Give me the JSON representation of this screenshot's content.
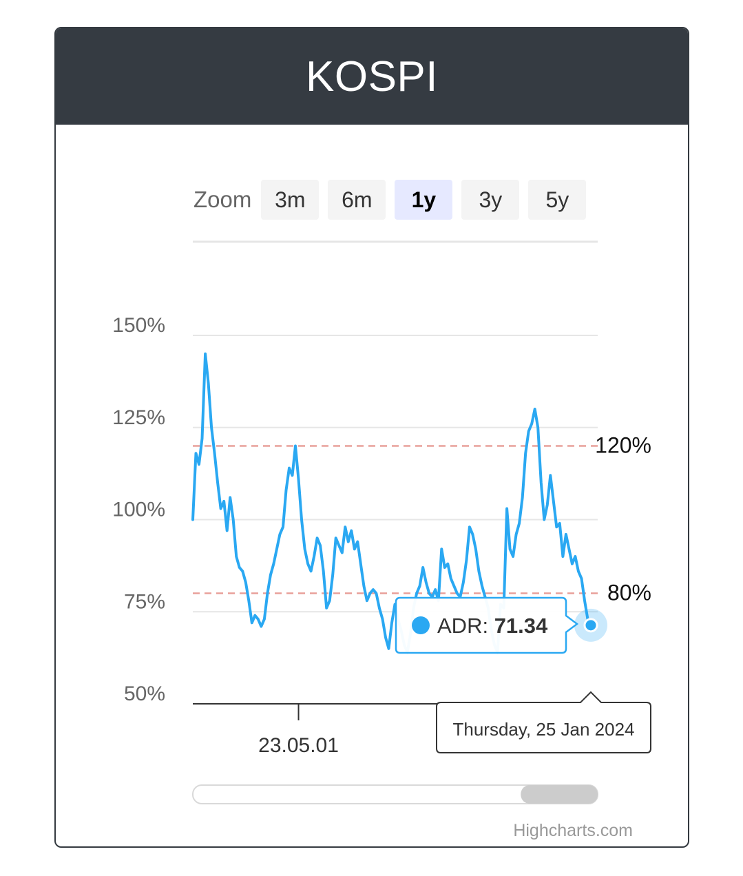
{
  "header": {
    "title": "KOSPI"
  },
  "zoom": {
    "label": "Zoom",
    "buttons": [
      "3m",
      "6m",
      "1y",
      "3y",
      "5y"
    ],
    "active": "1y"
  },
  "colors": {
    "line": "#2aa8f2",
    "threshold": "#e8a09a",
    "header_bg": "#353b42",
    "grid": "#e6e6e6",
    "navigator_handle": "#cccccc"
  },
  "chart_data": {
    "type": "line",
    "title": "",
    "xlabel": "",
    "ylabel": "",
    "ylim": [
      50,
      150
    ],
    "y_ticks": [
      "150%",
      "125%",
      "100%",
      "75%",
      "50%"
    ],
    "x_ticks": [
      {
        "label": "23.05.01",
        "index": 34
      }
    ],
    "grid": true,
    "plot_lines": [
      {
        "value": 120,
        "label": "120%"
      },
      {
        "value": 80,
        "label": "80%"
      }
    ],
    "series": [
      {
        "name": "ADR",
        "values": [
          100,
          118,
          115,
          122,
          145,
          137,
          125,
          118,
          110,
          103,
          105,
          97,
          106,
          100,
          90,
          87,
          86,
          83,
          78,
          72,
          74,
          73,
          71,
          73,
          80,
          85,
          88,
          92,
          96,
          98,
          108,
          114,
          112,
          120,
          111,
          100,
          92,
          88,
          86,
          90,
          95,
          93,
          86,
          76,
          78,
          85,
          95,
          93,
          91,
          98,
          94,
          97,
          92,
          94,
          88,
          82,
          78,
          80,
          81,
          80,
          76,
          73,
          68,
          65,
          72,
          77,
          73,
          70,
          66,
          64,
          69,
          76,
          80,
          82,
          87,
          83,
          80,
          79,
          81,
          78,
          92,
          87,
          88,
          84,
          82,
          80,
          79,
          83,
          89,
          98,
          96,
          92,
          86,
          82,
          79,
          76,
          70,
          66,
          64,
          77,
          76,
          103,
          92,
          90,
          96,
          99,
          106,
          118,
          124,
          126,
          130,
          125,
          110,
          100,
          104,
          112,
          105,
          98,
          99,
          90,
          96,
          92,
          88,
          90,
          86,
          84,
          78,
          73,
          71.34
        ]
      }
    ]
  },
  "tooltip": {
    "series_name": "ADR",
    "separator": ": ",
    "value": "71.34",
    "date_label": "Thursday, 25 Jan 2024"
  },
  "navigator": {
    "visible_fraction_start": 0.81,
    "visible_fraction_end": 1.0
  },
  "credits": "Highcharts.com"
}
